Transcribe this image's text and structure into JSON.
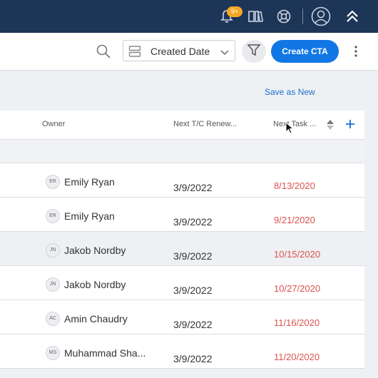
{
  "header": {
    "notification_badge": "9+"
  },
  "toolbar": {
    "sort_dropdown_value": "Created Date",
    "create_cta_label": "Create CTA"
  },
  "view": {
    "save_as_new_label": "Save as New"
  },
  "table": {
    "columns": {
      "owner": "Owner",
      "renewal": "Next T/C Renew...",
      "task": "Next Task ..."
    },
    "rows": [
      {
        "initials": "ER",
        "owner": "Emily Ryan",
        "renewal": "3/9/2022",
        "task": "8/13/2020"
      },
      {
        "initials": "ER",
        "owner": "Emily Ryan",
        "renewal": "3/9/2022",
        "task": "9/21/2020"
      },
      {
        "initials": "JN",
        "owner": "Jakob Nordby",
        "renewal": "3/9/2022",
        "task": "10/15/2020"
      },
      {
        "initials": "JN",
        "owner": "Jakob Nordby",
        "renewal": "3/9/2022",
        "task": "10/27/2020"
      },
      {
        "initials": "AC",
        "owner": "Amin Chaudry",
        "renewal": "3/9/2022",
        "task": "11/16/2020"
      },
      {
        "initials": "MS",
        "owner": "Muhammad Sha...",
        "renewal": "3/9/2022",
        "task": "11/20/2020"
      }
    ]
  },
  "colors": {
    "topbar": "#1d3557",
    "primary": "#1177e5",
    "overdue": "#d9534f"
  }
}
